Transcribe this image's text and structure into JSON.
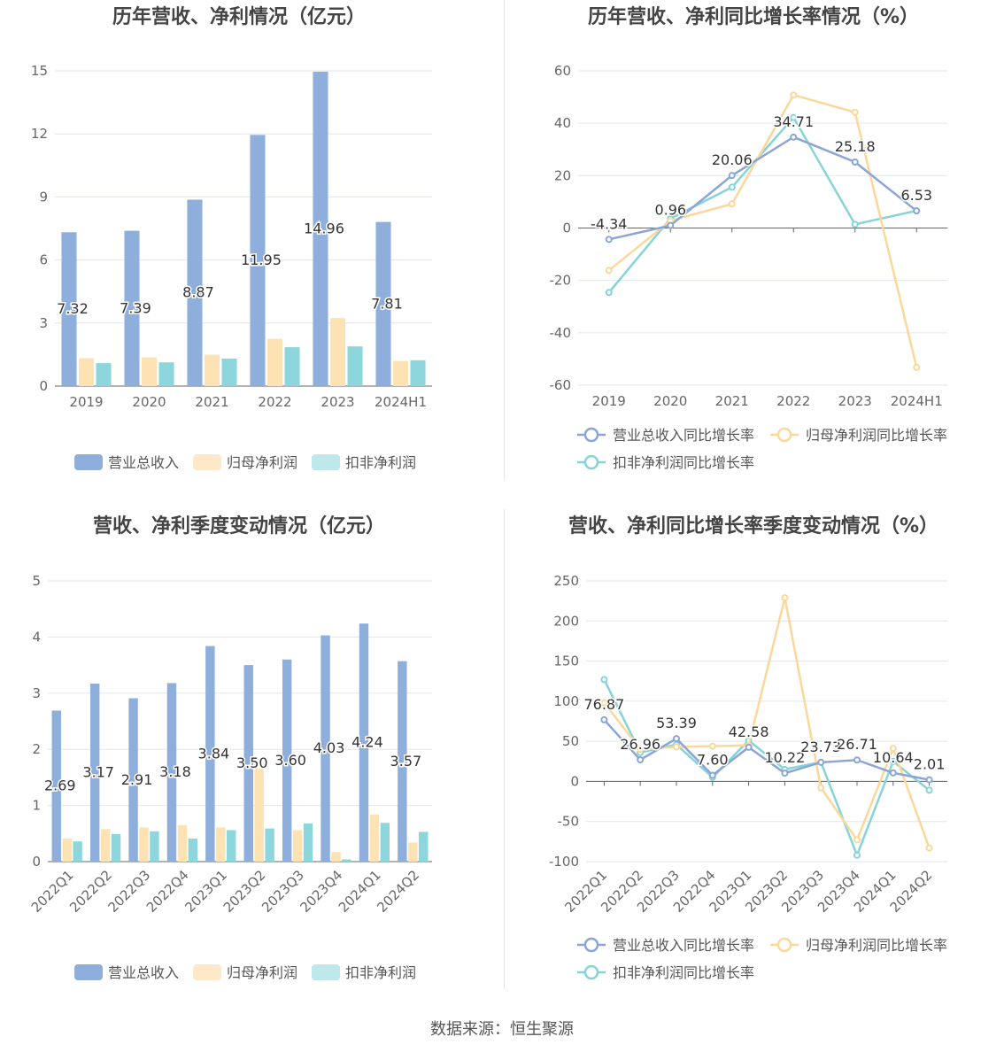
{
  "source_label": "数据来源：恒生聚源",
  "colors": {
    "revenue": "#8eaedb",
    "net_profit": "#fde3b4",
    "deducted_profit": "#8dd6dc",
    "revenue_line": "#8ba6d6",
    "net_profit_line": "#fbd89a",
    "deducted_line": "#86d4d8"
  },
  "chart_data": [
    {
      "type": "bar",
      "title": "历年营收、净利情况（亿元）",
      "categories": [
        "2019",
        "2020",
        "2021",
        "2022",
        "2023",
        "2024H1"
      ],
      "ylim": [
        0,
        15
      ],
      "yticks": [
        0,
        3,
        6,
        9,
        12,
        15
      ],
      "series": [
        {
          "name": "营业总收入",
          "values": [
            7.32,
            7.39,
            8.87,
            11.95,
            14.96,
            7.81
          ],
          "labels": [
            "7.32",
            "7.39",
            "8.87",
            "11.95",
            "14.96",
            "7.81"
          ]
        },
        {
          "name": "归母净利润",
          "values": [
            1.33,
            1.37,
            1.49,
            2.25,
            3.24,
            1.19
          ]
        },
        {
          "name": "扣非净利润",
          "values": [
            1.09,
            1.13,
            1.31,
            1.85,
            1.89,
            1.23
          ]
        }
      ],
      "legend": "bottom"
    },
    {
      "type": "line",
      "title": "历年营收、净利同比增长率情况（%）",
      "categories": [
        "2019",
        "2020",
        "2021",
        "2022",
        "2023",
        "2024H1"
      ],
      "ylim": [
        -60,
        60
      ],
      "yticks": [
        -60,
        -40,
        -20,
        0,
        20,
        40,
        60
      ],
      "series": [
        {
          "name": "营业总收入同比增长率",
          "values": [
            -4.34,
            0.96,
            20.06,
            34.71,
            25.18,
            6.53
          ],
          "labels": [
            "-4.34",
            "0.96",
            "20.06",
            "34.71",
            "25.18",
            "6.53"
          ]
        },
        {
          "name": "归母净利润同比增长率",
          "values": [
            -16.2,
            2.8,
            9.2,
            50.8,
            44.2,
            -53.2
          ]
        },
        {
          "name": "扣非净利润同比增长率",
          "values": [
            -24.6,
            3.6,
            15.6,
            42.2,
            1.4,
            6.6
          ]
        }
      ],
      "legend": "bottom"
    },
    {
      "type": "bar",
      "title": "营收、净利季度变动情况（亿元）",
      "categories": [
        "2022Q1",
        "2022Q2",
        "2022Q3",
        "2022Q4",
        "2023Q1",
        "2023Q2",
        "2023Q3",
        "2023Q4",
        "2024Q1",
        "2024Q2"
      ],
      "ylim": [
        0,
        5
      ],
      "yticks": [
        0,
        1,
        2,
        3,
        4,
        5
      ],
      "series": [
        {
          "name": "营业总收入",
          "values": [
            2.69,
            3.17,
            2.91,
            3.18,
            3.84,
            3.5,
            3.6,
            4.03,
            4.24,
            3.57
          ],
          "labels": [
            "2.69",
            "3.17",
            "2.91",
            "3.18",
            "3.84",
            "3.50",
            "3.60",
            "4.03",
            "4.24",
            "3.57"
          ]
        },
        {
          "name": "归母净利润",
          "values": [
            0.41,
            0.58,
            0.61,
            0.65,
            0.61,
            1.66,
            0.56,
            0.17,
            0.84,
            0.34
          ]
        },
        {
          "name": "扣非净利润",
          "values": [
            0.36,
            0.49,
            0.54,
            0.41,
            0.56,
            0.59,
            0.68,
            0.04,
            0.69,
            0.53
          ]
        }
      ],
      "legend": "bottom"
    },
    {
      "type": "line",
      "title": "营收、净利同比增长率季度变动情况（%）",
      "categories": [
        "2022Q1",
        "2022Q2",
        "2022Q3",
        "2022Q4",
        "2023Q1",
        "2023Q2",
        "2023Q3",
        "2023Q4",
        "2024Q1",
        "2024Q2"
      ],
      "ylim": [
        -100,
        250
      ],
      "yticks": [
        -100,
        -50,
        0,
        50,
        100,
        150,
        200,
        250
      ],
      "series": [
        {
          "name": "营业总收入同比增长率",
          "values": [
            76.87,
            26.96,
            53.39,
            7.6,
            42.58,
            10.22,
            23.73,
            26.71,
            10.64,
            2.01
          ],
          "labels": [
            "76.87",
            "26.96",
            "53.39",
            "7.60",
            "42.58",
            "10.22",
            "23.73",
            "26.71",
            "10.64",
            "2.01"
          ]
        },
        {
          "name": "归母净利润同比增长率",
          "values": [
            98,
            40,
            43,
            44,
            45,
            229,
            -8,
            -73,
            41,
            -83
          ]
        },
        {
          "name": "扣非净利润同比增长率",
          "values": [
            127,
            36,
            46,
            5,
            51,
            15,
            24,
            -92,
            25,
            -11
          ]
        }
      ],
      "legend": "bottom"
    }
  ]
}
